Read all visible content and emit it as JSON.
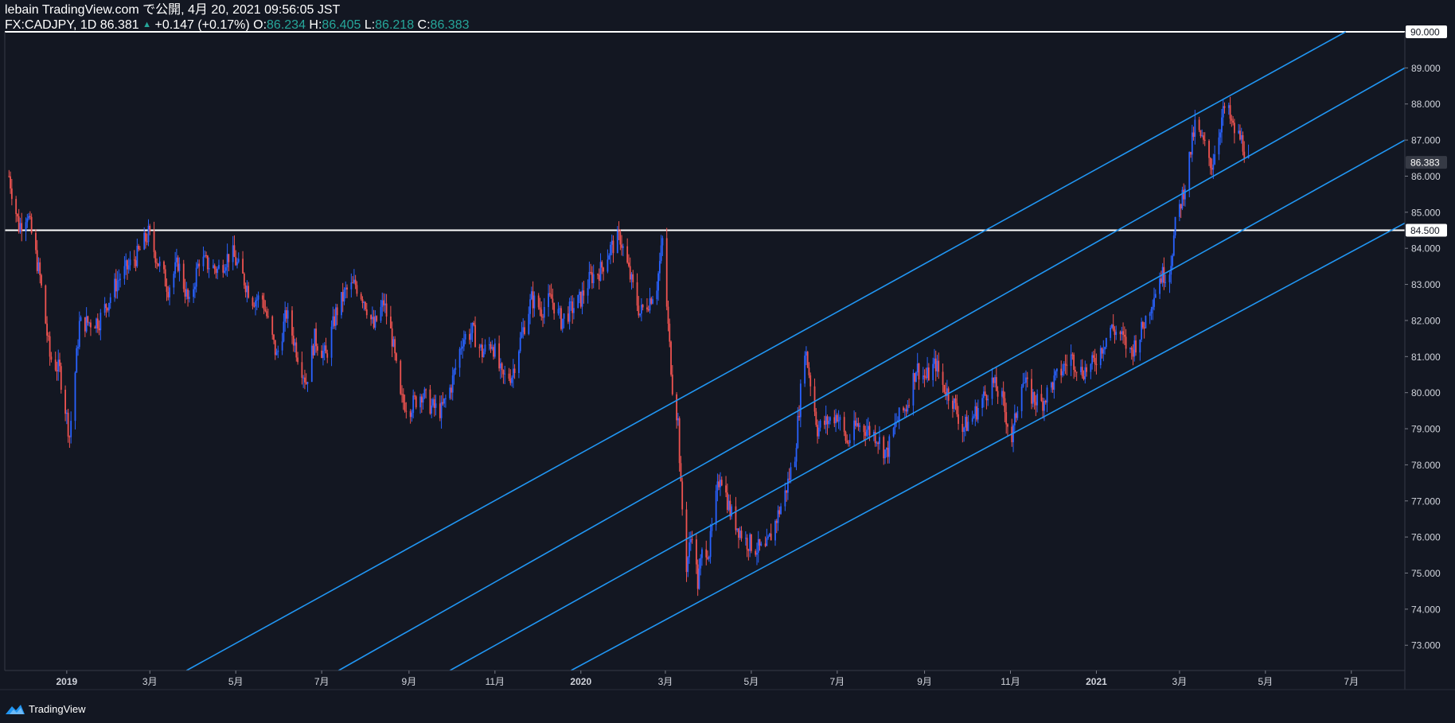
{
  "header": {
    "line1": "lebain TradingView.com で公開, 4月 20, 2021 09:56:05 JST",
    "symbol": "FX:CADJPY, 1D",
    "last": "86.381",
    "change": "+0.147 (+0.17%)",
    "o_label": "O:",
    "o": "86.234",
    "h_label": "H:",
    "h": "86.405",
    "l_label": "L:",
    "l": "86.218",
    "c_label": "C:",
    "c": "86.383"
  },
  "footer": {
    "brand": "TradingView"
  },
  "colors": {
    "bg": "#131722",
    "up": "#2962ff",
    "down": "#ef5350",
    "channel": "#2196f3",
    "grid": "#1e222d",
    "value_up": "#26a69a"
  },
  "chart_data": {
    "type": "candlestick",
    "symbol": "FX:CADJPY",
    "interval": "1D",
    "ylim": [
      72.3,
      90.0
    ],
    "y_ticks": [
      73,
      74,
      75,
      76,
      77,
      78,
      79,
      80,
      81,
      82,
      83,
      84,
      85,
      86,
      87,
      88,
      89,
      90
    ],
    "y_tick_labels": [
      "73.000",
      "74.000",
      "75.000",
      "76.000",
      "77.000",
      "78.000",
      "79.000",
      "80.000",
      "81.000",
      "82.000",
      "83.000",
      "84.000",
      "85.000",
      "86.000",
      "87.000",
      "88.000",
      "89.000",
      "90.000"
    ],
    "x_range": [
      "2018-11-18",
      "2021-08-08"
    ],
    "x_ticks": [
      {
        "date": "2019-01-01",
        "label": "2019"
      },
      {
        "date": "2019-03-01",
        "label": "3月"
      },
      {
        "date": "2019-05-01",
        "label": "5月"
      },
      {
        "date": "2019-07-01",
        "label": "7月"
      },
      {
        "date": "2019-09-01",
        "label": "9月"
      },
      {
        "date": "2019-11-01",
        "label": "11月"
      },
      {
        "date": "2020-01-01",
        "label": "2020"
      },
      {
        "date": "2020-03-01",
        "label": "3月"
      },
      {
        "date": "2020-05-01",
        "label": "5月"
      },
      {
        "date": "2020-07-01",
        "label": "7月"
      },
      {
        "date": "2020-09-01",
        "label": "9月"
      },
      {
        "date": "2020-11-01",
        "label": "11月"
      },
      {
        "date": "2021-01-01",
        "label": "2021"
      },
      {
        "date": "2021-03-01",
        "label": "3月"
      },
      {
        "date": "2021-05-01",
        "label": "5月"
      },
      {
        "date": "2021-07-01",
        "label": "7月"
      }
    ],
    "price_path": [
      [
        "2018-11-21",
        86.0
      ],
      [
        "2018-11-28",
        84.6
      ],
      [
        "2018-12-04",
        85.0
      ],
      [
        "2018-12-13",
        83.2
      ],
      [
        "2018-12-20",
        81.0
      ],
      [
        "2018-12-27",
        80.6
      ],
      [
        "2019-01-03",
        78.8
      ],
      [
        "2019-01-10",
        81.9
      ],
      [
        "2019-01-24",
        82.0
      ],
      [
        "2019-02-06",
        83.1
      ],
      [
        "2019-02-20",
        83.8
      ],
      [
        "2019-02-28",
        84.4
      ],
      [
        "2019-03-07",
        83.6
      ],
      [
        "2019-03-14",
        82.9
      ],
      [
        "2019-03-21",
        83.6
      ],
      [
        "2019-03-29",
        82.4
      ],
      [
        "2019-04-05",
        83.7
      ],
      [
        "2019-04-18",
        83.4
      ],
      [
        "2019-04-28",
        83.9
      ],
      [
        "2019-05-06",
        83.2
      ],
      [
        "2019-05-13",
        82.6
      ],
      [
        "2019-05-20",
        82.6
      ],
      [
        "2019-05-30",
        81.0
      ],
      [
        "2019-06-06",
        82.2
      ],
      [
        "2019-06-13",
        81.2
      ],
      [
        "2019-06-20",
        80.3
      ],
      [
        "2019-06-26",
        81.5
      ],
      [
        "2019-07-04",
        81.0
      ],
      [
        "2019-07-11",
        82.2
      ],
      [
        "2019-07-18",
        82.8
      ],
      [
        "2019-07-25",
        83.0
      ],
      [
        "2019-07-31",
        82.6
      ],
      [
        "2019-08-07",
        81.8
      ],
      [
        "2019-08-14",
        82.5
      ],
      [
        "2019-08-20",
        81.5
      ],
      [
        "2019-08-26",
        79.8
      ],
      [
        "2019-09-02",
        79.6
      ],
      [
        "2019-09-10",
        80.0
      ],
      [
        "2019-09-17",
        79.6
      ],
      [
        "2019-09-24",
        79.5
      ],
      [
        "2019-10-01",
        80.2
      ],
      [
        "2019-10-09",
        81.5
      ],
      [
        "2019-10-16",
        81.7
      ],
      [
        "2019-10-23",
        81.1
      ],
      [
        "2019-10-30",
        81.4
      ],
      [
        "2019-11-06",
        80.4
      ],
      [
        "2019-11-13",
        80.5
      ],
      [
        "2019-11-20",
        81.6
      ],
      [
        "2019-11-27",
        82.6
      ],
      [
        "2019-12-04",
        82.3
      ],
      [
        "2019-12-11",
        82.6
      ],
      [
        "2019-12-18",
        82.0
      ],
      [
        "2019-12-25",
        82.3
      ],
      [
        "2020-01-01",
        82.6
      ],
      [
        "2020-01-08",
        83.2
      ],
      [
        "2020-01-15",
        83.4
      ],
      [
        "2020-01-22",
        84.0
      ],
      [
        "2020-01-29",
        84.3
      ],
      [
        "2020-02-05",
        83.2
      ],
      [
        "2020-02-12",
        82.2
      ],
      [
        "2020-02-19",
        82.6
      ],
      [
        "2020-02-24",
        83.0
      ],
      [
        "2020-02-28",
        84.2
      ],
      [
        "2020-03-03",
        81.8
      ],
      [
        "2020-03-06",
        80.2
      ],
      [
        "2020-03-10",
        79.2
      ],
      [
        "2020-03-12",
        77.3
      ],
      [
        "2020-03-16",
        75.2
      ],
      [
        "2020-03-20",
        76.2
      ],
      [
        "2020-03-24",
        74.7
      ],
      [
        "2020-03-28",
        75.8
      ],
      [
        "2020-04-01",
        75.6
      ],
      [
        "2020-04-05",
        76.8
      ],
      [
        "2020-04-09",
        77.8
      ],
      [
        "2020-04-16",
        76.7
      ],
      [
        "2020-04-21",
        76.3
      ],
      [
        "2020-04-27",
        75.9
      ],
      [
        "2020-05-04",
        75.7
      ],
      [
        "2020-05-11",
        75.6
      ],
      [
        "2020-05-18",
        76.4
      ],
      [
        "2020-05-25",
        77.2
      ],
      [
        "2020-06-01",
        78.3
      ],
      [
        "2020-06-08",
        81.3
      ],
      [
        "2020-06-12",
        80.3
      ],
      [
        "2020-06-17",
        79.0
      ],
      [
        "2020-06-24",
        79.2
      ],
      [
        "2020-07-01",
        79.4
      ],
      [
        "2020-07-08",
        78.6
      ],
      [
        "2020-07-15",
        79.1
      ],
      [
        "2020-07-22",
        79.0
      ],
      [
        "2020-07-29",
        78.8
      ],
      [
        "2020-08-05",
        78.3
      ],
      [
        "2020-08-12",
        79.2
      ],
      [
        "2020-08-19",
        79.6
      ],
      [
        "2020-08-26",
        80.7
      ],
      [
        "2020-09-02",
        80.4
      ],
      [
        "2020-09-09",
        80.8
      ],
      [
        "2020-09-14",
        80.2
      ],
      [
        "2020-09-21",
        79.8
      ],
      [
        "2020-09-28",
        79.0
      ],
      [
        "2020-10-05",
        79.3
      ],
      [
        "2020-10-12",
        79.8
      ],
      [
        "2020-10-19",
        80.3
      ],
      [
        "2020-10-26",
        79.8
      ],
      [
        "2020-11-02",
        78.7
      ],
      [
        "2020-11-09",
        80.4
      ],
      [
        "2020-11-16",
        79.9
      ],
      [
        "2020-11-23",
        79.7
      ],
      [
        "2020-11-30",
        80.2
      ],
      [
        "2020-12-07",
        80.6
      ],
      [
        "2020-12-14",
        81.0
      ],
      [
        "2020-12-21",
        80.6
      ],
      [
        "2020-12-28",
        80.7
      ],
      [
        "2021-01-04",
        81.2
      ],
      [
        "2021-01-11",
        81.8
      ],
      [
        "2021-01-18",
        81.6
      ],
      [
        "2021-01-25",
        81.1
      ],
      [
        "2021-02-01",
        81.6
      ],
      [
        "2021-02-08",
        82.4
      ],
      [
        "2021-02-15",
        83.2
      ],
      [
        "2021-02-22",
        83.4
      ],
      [
        "2021-02-26",
        84.6
      ],
      [
        "2021-03-05",
        85.8
      ],
      [
        "2021-03-12",
        87.4
      ],
      [
        "2021-03-19",
        86.8
      ],
      [
        "2021-03-24",
        86.3
      ],
      [
        "2021-03-31",
        87.6
      ],
      [
        "2021-04-03",
        88.0
      ],
      [
        "2021-04-08",
        87.3
      ],
      [
        "2021-04-14",
        87.0
      ],
      [
        "2021-04-19",
        86.4
      ]
    ],
    "horizontal_lines": [
      {
        "price": 90.0,
        "label": "90.000"
      },
      {
        "price": 84.5,
        "label": "84.500"
      }
    ],
    "last_price": {
      "price": 86.383,
      "label": "86.383"
    },
    "channel_lines": [
      {
        "from": [
          "2019-03-27",
          72.3
        ],
        "to": [
          "2021-06-27",
          90.0
        ]
      },
      {
        "from": [
          "2019-07-13",
          72.3
        ],
        "to": [
          "2021-08-08",
          89.0
        ]
      },
      {
        "from": [
          "2019-09-30",
          72.3
        ],
        "to": [
          "2021-08-08",
          87.0
        ]
      },
      {
        "from": [
          "2019-12-25",
          72.3
        ],
        "to": [
          "2021-08-08",
          84.7
        ]
      }
    ]
  }
}
